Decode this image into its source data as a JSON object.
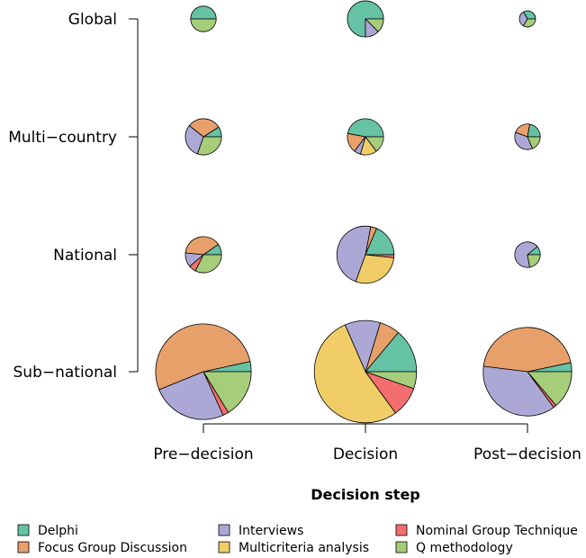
{
  "chart_data": {
    "type": "pie",
    "layout": "pie-grid",
    "xlabel": "Decision step",
    "ylabel": "",
    "x_categories": [
      "Pre−decision",
      "Decision",
      "Post−decision"
    ],
    "y_categories": [
      "Sub−national",
      "National",
      "Multi−country",
      "Global"
    ],
    "series": [
      {
        "name": "Delphi",
        "color": "#66c2a5"
      },
      {
        "name": "Focus Group Discussion",
        "color": "#e8a06b"
      },
      {
        "name": "Interviews",
        "color": "#aca8d6"
      },
      {
        "name": "Multicriteria analysis",
        "color": "#f0cd66"
      },
      {
        "name": "Nominal Group Technique",
        "color": "#f36e6e"
      },
      {
        "name": "Q methodology",
        "color": "#a6cd7a"
      }
    ],
    "legend_position": "bottom",
    "pies": [
      {
        "x": "Pre−decision",
        "y": "Global",
        "size": 1,
        "values": [
          1,
          0,
          0,
          0,
          0,
          1
        ]
      },
      {
        "x": "Decision",
        "y": "Global",
        "size": 2,
        "values": [
          3,
          0,
          0.5,
          0,
          0,
          0.5
        ]
      },
      {
        "x": "Post−decision",
        "y": "Global",
        "size": 0.4,
        "values": [
          1,
          0,
          1,
          0,
          0,
          1
        ]
      },
      {
        "x": "Pre−decision",
        "y": "Multi−country",
        "size": 2,
        "values": [
          0.3,
          1,
          1,
          0,
          0,
          1
        ]
      },
      {
        "x": "Decision",
        "y": "Multi−country",
        "size": 2,
        "values": [
          1.6,
          0.6,
          0.2,
          0.5,
          0,
          0.5
        ]
      },
      {
        "x": "Post−decision",
        "y": "Multi−country",
        "size": 1,
        "values": [
          0.6,
          0.6,
          1,
          0,
          0,
          0.5
        ]
      },
      {
        "x": "Pre−decision",
        "y": "National",
        "size": 2,
        "values": [
          0.3,
          1.2,
          0.4,
          0,
          0.2,
          1
        ]
      },
      {
        "x": "Decision",
        "y": "National",
        "size": 5,
        "values": [
          1.1,
          0.2,
          2.8,
          1.7,
          0.1,
          0
        ]
      },
      {
        "x": "Post−decision",
        "y": "National",
        "size": 1,
        "values": [
          0.25,
          0,
          1.5,
          0,
          0,
          0.5
        ]
      },
      {
        "x": "Pre−decision",
        "y": "Sub−national",
        "size": 14,
        "values": [
          0.7,
          10.7,
          5.2,
          0,
          0.4,
          3.3
        ]
      },
      {
        "x": "Decision",
        "y": "Sub−national",
        "size": 16,
        "values": [
          2.6,
          1.2,
          2.1,
          10,
          1.8,
          1
        ]
      },
      {
        "x": "Post−decision",
        "y": "Sub−national",
        "size": 12,
        "values": [
          0.6,
          8.1,
          6.7,
          0,
          0.2,
          2.5
        ]
      }
    ]
  }
}
